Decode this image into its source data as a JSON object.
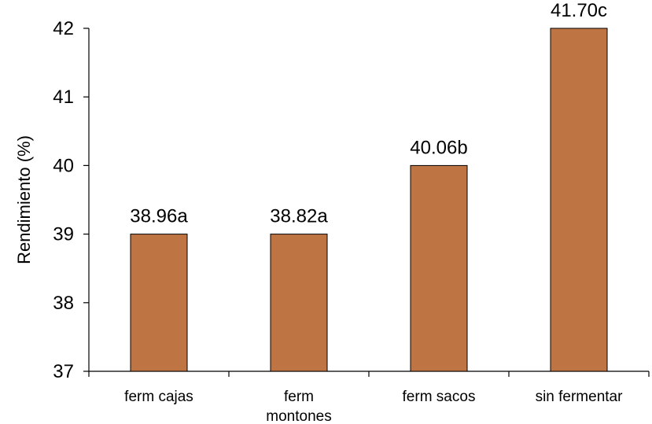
{
  "chart_data": {
    "type": "bar",
    "title": "",
    "xlabel": "",
    "ylabel": "Rendimiento (%)",
    "ylim": [
      37,
      42
    ],
    "yticks": [
      "37",
      "38",
      "39",
      "40",
      "41",
      "42"
    ],
    "grid": false,
    "categories": [
      [
        "ferm cajas"
      ],
      [
        "ferm",
        "montones"
      ],
      [
        "ferm sacos"
      ],
      [
        "sin fermentar"
      ]
    ],
    "values": [
      39.0,
      39.0,
      40.0,
      42.0
    ],
    "data_labels": [
      "38.96a",
      "38.82a",
      "40.06b",
      "41.70c"
    ],
    "bar_color": "#bf7444",
    "bar_edge_color": "#000000"
  }
}
